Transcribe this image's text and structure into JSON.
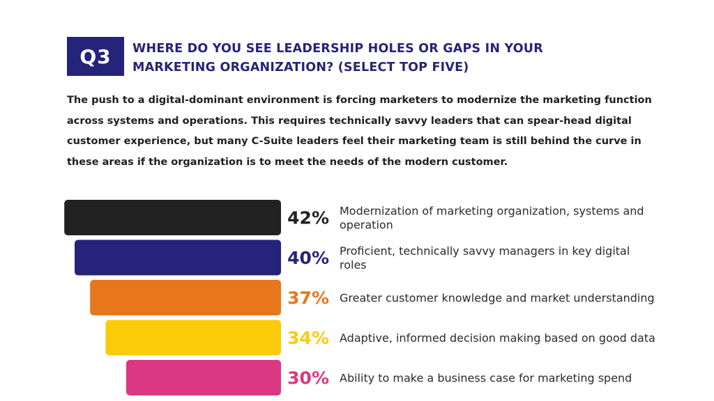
{
  "question": {
    "badge": "Q3",
    "title": "WHERE DO YOU SEE LEADERSHIP HOLES OR GAPS IN YOUR MARKETING ORGANIZATION? (SELECT TOP FIVE)"
  },
  "intro": "The push to a digital-dominant environment is forcing marketers to modernize the marketing function across systems and operations. This requires technically savvy leaders that can spear-head digital customer experience, but many C-Suite leaders feel their marketing team is still behind the curve in these areas if the organization is to meet the needs of the modern customer.",
  "colors": {
    "navy": "#26237a",
    "text": "#1f1f1f"
  },
  "chart_data": {
    "type": "bar",
    "orientation": "horizontal-funnel",
    "categories": [
      "Modernization of marketing organization, systems and operation",
      "Proficient, technically savvy managers in key digital roles",
      "Greater customer knowledge and market understanding",
      "Adaptive, informed decision making based on good data",
      "Ability to make a business case for marketing spend"
    ],
    "values": [
      42,
      40,
      37,
      34,
      30
    ],
    "value_labels": [
      "42%",
      "40%",
      "37%",
      "34%",
      "30%"
    ],
    "colors": [
      "#222222",
      "#26237a",
      "#e8761d",
      "#fdcb0a",
      "#db3782"
    ],
    "label_colors": [
      "#222222",
      "#26237a",
      "#e8761d",
      "#fdcb0a",
      "#db3782"
    ]
  }
}
